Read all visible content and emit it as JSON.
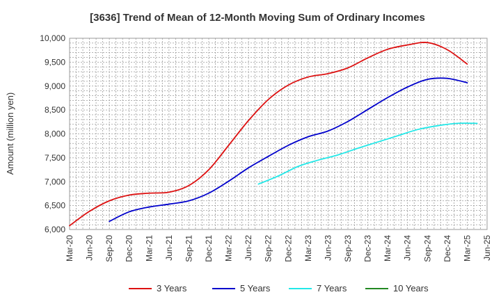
{
  "chart_data": {
    "type": "line",
    "title": "[3636]  Trend of Mean of 12-Month Moving Sum of Ordinary Incomes",
    "xlabel": "",
    "ylabel": "Amount (million yen)",
    "ylim": [
      6000,
      10000
    ],
    "yticks": [
      6000,
      6500,
      7000,
      7500,
      8000,
      8500,
      9000,
      9500,
      10000
    ],
    "ytick_labels": [
      "6,000",
      "6,500",
      "7,000",
      "7,500",
      "8,000",
      "8,500",
      "9,000",
      "9,500",
      "10,000"
    ],
    "x_categories": [
      "Mar-20",
      "Jun-20",
      "Sep-20",
      "Dec-20",
      "Mar-21",
      "Jun-21",
      "Sep-21",
      "Dec-21",
      "Mar-22",
      "Jun-22",
      "Sep-22",
      "Dec-22",
      "Mar-23",
      "Jun-23",
      "Sep-23",
      "Dec-23",
      "Mar-24",
      "Jun-24",
      "Sep-24",
      "Dec-24",
      "Mar-25",
      "Jun-25"
    ],
    "grid": true,
    "legend_position": "bottom",
    "series": [
      {
        "name": "3 Years",
        "color": "#dd1111",
        "start_index": 0,
        "values": [
          6080,
          6380,
          6600,
          6720,
          6760,
          6780,
          6920,
          7250,
          7760,
          8280,
          8720,
          9020,
          9190,
          9260,
          9380,
          9590,
          9770,
          9860,
          9910,
          9760,
          9460
        ]
      },
      {
        "name": "5 Years",
        "color": "#0000cc",
        "start_index": 2,
        "values": [
          6170,
          6370,
          6470,
          6530,
          6600,
          6760,
          7010,
          7290,
          7530,
          7760,
          7940,
          8060,
          8260,
          8510,
          8760,
          8980,
          9140,
          9160,
          9070
        ]
      },
      {
        "name": "7 Years",
        "color": "#22e8e8",
        "start_index": 9.5,
        "values": [
          6950,
          7120,
          7320,
          7450,
          7560,
          7700,
          7830,
          7960,
          8090,
          8170,
          8220,
          8220
        ]
      },
      {
        "name": "10 Years",
        "color": "#228822",
        "start_index": 0,
        "values": []
      }
    ]
  }
}
